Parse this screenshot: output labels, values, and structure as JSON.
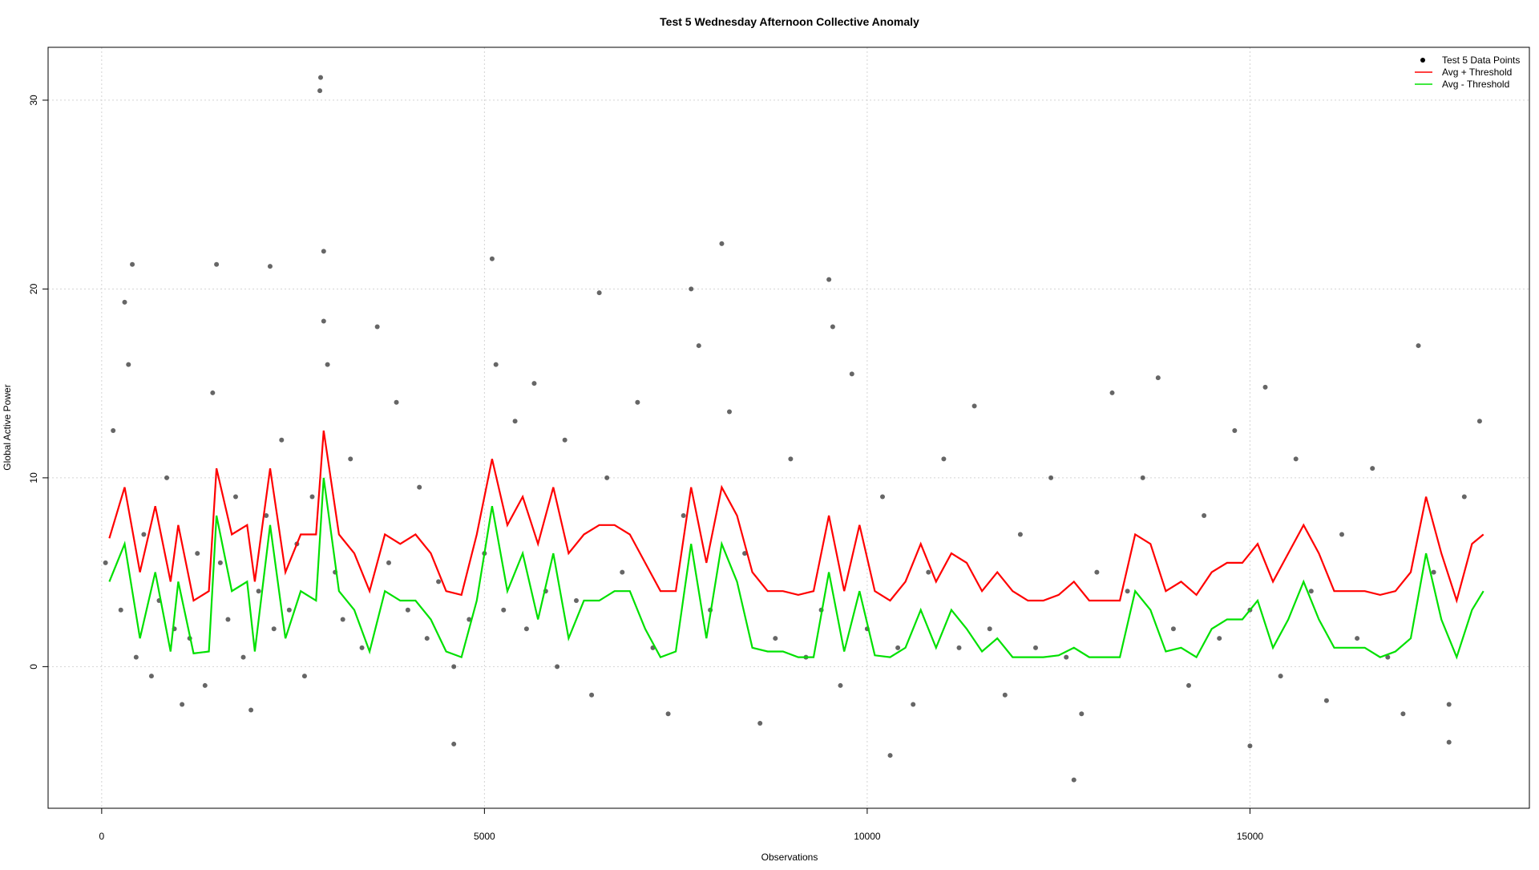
{
  "chart_data": {
    "type": "scatter",
    "title": "Test 5 Wednesday Afternoon Collective Anomaly",
    "x_label": "Observations",
    "y_label": "Global Active Power",
    "xlim": [
      -700,
      18650
    ],
    "ylim": [
      -7.5,
      32.8
    ],
    "xticks": [
      0,
      5000,
      10000,
      15000
    ],
    "yticks": [
      0,
      10,
      20,
      30
    ],
    "grid": true,
    "legend": "topright",
    "series": [
      {
        "name": "Test 5 Data Points",
        "type": "scatter",
        "color": "#000000",
        "x": [
          50,
          150,
          250,
          350,
          450,
          550,
          650,
          750,
          850,
          950,
          1050,
          1150,
          1250,
          1350,
          1450,
          1550,
          1650,
          1750,
          1850,
          1950,
          2050,
          2150,
          2250,
          2350,
          2450,
          2550,
          2650,
          2750,
          2950,
          3050,
          3150,
          3250,
          3400,
          3600,
          3750,
          3850,
          4000,
          4150,
          4250,
          4400,
          4600,
          4800,
          5000,
          5150,
          5250,
          5400,
          5550,
          5650,
          5800,
          5950,
          6050,
          6200,
          6400,
          6600,
          6800,
          7000,
          7200,
          7400,
          7600,
          7800,
          7950,
          8200,
          8400,
          8600,
          8800,
          9000,
          9200,
          9400,
          9550,
          9650,
          9800,
          10000,
          10200,
          10400,
          10600,
          10800,
          11000,
          11200,
          11400,
          11600,
          11800,
          12000,
          12200,
          12400,
          12600,
          12800,
          13000,
          13200,
          13400,
          13600,
          13800,
          14000,
          14200,
          14400,
          14600,
          14800,
          15000,
          15200,
          15400,
          15600,
          15800,
          16000,
          16200,
          16400,
          16600,
          16800,
          17000,
          17200,
          17400,
          17600,
          17800,
          18000,
          2860,
          2850,
          2900,
          8100,
          5100,
          400,
          1500,
          9500,
          7700,
          6500,
          300,
          12700,
          10300,
          4600,
          17600,
          15000,
          2200,
          2900
        ],
        "values": [
          5.5,
          12.5,
          3,
          16,
          0.5,
          7,
          -0.5,
          3.5,
          10,
          2,
          -2,
          1.5,
          6,
          -1,
          14.5,
          5.5,
          2.5,
          9,
          0.5,
          -2.3,
          4,
          8,
          2,
          12,
          3,
          6.5,
          -0.5,
          9,
          16,
          5,
          2.5,
          11,
          1,
          18,
          5.5,
          14,
          3,
          9.5,
          1.5,
          4.5,
          0,
          2.5,
          6,
          16,
          3,
          13,
          2,
          15,
          4,
          0,
          12,
          3.5,
          -1.5,
          10,
          5,
          14,
          1,
          -2.5,
          8,
          17,
          3,
          13.5,
          6,
          -3,
          1.5,
          11,
          0.5,
          3,
          18,
          -1,
          15.5,
          2,
          9,
          1,
          -2,
          5,
          11,
          1,
          13.8,
          2,
          -1.5,
          7,
          1,
          10,
          0.5,
          -2.5,
          5,
          14.5,
          4,
          10,
          15.3,
          2,
          -1,
          8,
          1.5,
          12.5,
          3,
          14.8,
          -0.5,
          11,
          4,
          -1.8,
          7,
          1.5,
          10.5,
          0.5,
          -2.5,
          17,
          5,
          -2,
          9,
          13,
          31.2,
          30.5,
          22,
          22.4,
          21.6,
          21.3,
          21.3,
          20.5,
          20,
          19.8,
          19.3,
          -6,
          -4.7,
          -4.1,
          -4,
          -4.2,
          21.2,
          18.3
        ]
      },
      {
        "name": "Avg + Threshold",
        "type": "line",
        "color": "#ff0000",
        "x": [
          100,
          300,
          500,
          700,
          900,
          1000,
          1200,
          1400,
          1500,
          1700,
          1900,
          2000,
          2200,
          2400,
          2600,
          2800,
          2900,
          3100,
          3300,
          3500,
          3700,
          3900,
          4100,
          4300,
          4500,
          4700,
          4900,
          5100,
          5300,
          5500,
          5700,
          5900,
          6100,
          6300,
          6500,
          6700,
          6900,
          7100,
          7300,
          7500,
          7700,
          7900,
          8100,
          8300,
          8500,
          8700,
          8900,
          9100,
          9300,
          9500,
          9700,
          9900,
          10100,
          10300,
          10500,
          10700,
          10900,
          11100,
          11300,
          11500,
          11700,
          11900,
          12100,
          12300,
          12500,
          12700,
          12900,
          13100,
          13300,
          13500,
          13700,
          13900,
          14100,
          14300,
          14500,
          14700,
          14900,
          15100,
          15300,
          15500,
          15700,
          15900,
          16100,
          16300,
          16500,
          16700,
          16900,
          17100,
          17300,
          17500,
          17700,
          17900,
          18050
        ],
        "values": [
          6.8,
          9.5,
          5,
          8.5,
          4.5,
          7.5,
          3.5,
          4,
          10.5,
          7,
          7.5,
          4.5,
          10.5,
          5,
          7,
          7,
          12.5,
          7,
          6,
          4,
          7,
          6.5,
          7,
          6,
          4,
          3.8,
          7,
          11,
          7.5,
          9,
          6.5,
          9.5,
          6,
          7,
          7.5,
          7.5,
          7,
          5.5,
          4,
          4,
          9.5,
          5.5,
          9.5,
          8,
          5,
          4,
          4,
          3.8,
          4,
          8,
          4,
          7.5,
          4,
          3.5,
          4.5,
          6.5,
          4.5,
          6,
          5.5,
          4,
          5,
          4,
          3.5,
          3.5,
          3.8,
          4.5,
          3.5,
          3.5,
          3.5,
          7,
          6.5,
          4,
          4.5,
          3.8,
          5,
          5.5,
          5.5,
          6.5,
          4.5,
          6,
          7.5,
          6,
          4,
          4,
          4,
          3.8,
          4,
          5,
          9,
          6,
          3.5,
          6.5,
          7
        ]
      },
      {
        "name": "Avg - Threshold",
        "type": "line",
        "color": "#00e000",
        "x": [
          100,
          300,
          500,
          700,
          900,
          1000,
          1200,
          1400,
          1500,
          1700,
          1900,
          2000,
          2200,
          2400,
          2600,
          2800,
          2900,
          3100,
          3300,
          3500,
          3700,
          3900,
          4100,
          4300,
          4500,
          4700,
          4900,
          5100,
          5300,
          5500,
          5700,
          5900,
          6100,
          6300,
          6500,
          6700,
          6900,
          7100,
          7300,
          7500,
          7700,
          7900,
          8100,
          8300,
          8500,
          8700,
          8900,
          9100,
          9300,
          9500,
          9700,
          9900,
          10100,
          10300,
          10500,
          10700,
          10900,
          11100,
          11300,
          11500,
          11700,
          11900,
          12100,
          12300,
          12500,
          12700,
          12900,
          13100,
          13300,
          13500,
          13700,
          13900,
          14100,
          14300,
          14500,
          14700,
          14900,
          15100,
          15300,
          15500,
          15700,
          15900,
          16100,
          16300,
          16500,
          16700,
          16900,
          17100,
          17300,
          17500,
          17700,
          17900,
          18050
        ],
        "values": [
          4.5,
          6.5,
          1.5,
          5,
          0.8,
          4.5,
          0.7,
          0.8,
          8,
          4,
          4.5,
          0.8,
          7.5,
          1.5,
          4,
          3.5,
          10,
          4,
          3,
          0.8,
          4,
          3.5,
          3.5,
          2.5,
          0.8,
          0.5,
          3.5,
          8.5,
          4,
          6,
          2.5,
          6,
          1.5,
          3.5,
          3.5,
          4,
          4,
          2,
          0.5,
          0.8,
          6.5,
          1.5,
          6.5,
          4.5,
          1,
          0.8,
          0.8,
          0.5,
          0.5,
          5,
          0.8,
          4,
          0.6,
          0.5,
          1,
          3,
          1,
          3,
          2,
          0.8,
          1.5,
          0.5,
          0.5,
          0.5,
          0.6,
          1,
          0.5,
          0.5,
          0.5,
          4,
          3,
          0.8,
          1,
          0.5,
          2,
          2.5,
          2.5,
          3.5,
          1,
          2.5,
          4.5,
          2.5,
          1,
          1,
          1,
          0.5,
          0.8,
          1.5,
          6,
          2.5,
          0.5,
          3,
          4
        ]
      }
    ]
  }
}
